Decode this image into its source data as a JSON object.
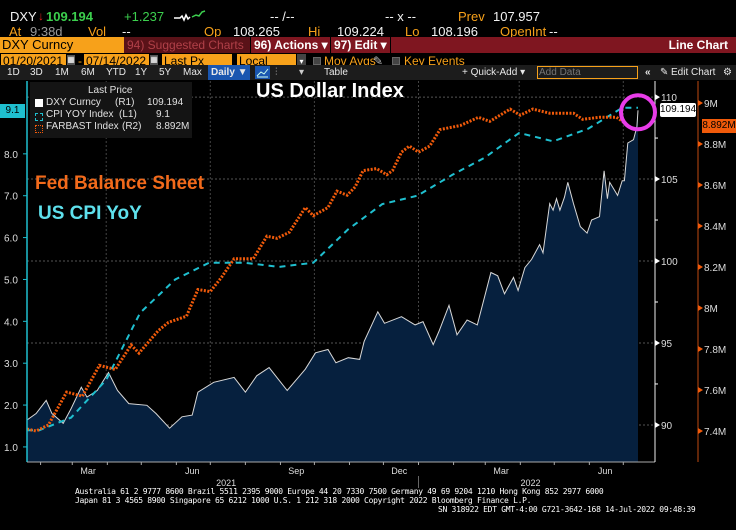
{
  "header": {
    "ticker": "DXY",
    "price": "109.194",
    "change": "+1.237",
    "bid_ask": "-- /--",
    "size": "-- x --",
    "prev_label": "Prev",
    "prev": "107.957",
    "at_label": "At",
    "time": "9:38d",
    "vol_label": "Vol",
    "vol": "--",
    "open_label": "Op",
    "open": "108.265",
    "high_label": "Hi",
    "high": "109.224",
    "low_label": "Lo",
    "low": "108.196",
    "openint_label": "OpenInt",
    "openint": "--"
  },
  "toolbar": {
    "security": "DXY Curncy",
    "suggested": "94) Suggested Charts",
    "actions": "96) Actions ▾",
    "edit": "97) Edit ▾",
    "chart_type": "Line Chart",
    "start_date": "01/20/2021",
    "date_sep": "-",
    "end_date": "07/14/2022",
    "field": "Last Px",
    "currency": "Local CCY",
    "mov_avgs": "Mov Avgs",
    "key_events": "Key Events",
    "ranges": [
      "1D",
      "3D",
      "1M",
      "6M",
      "YTD",
      "1Y",
      "5Y",
      "Max"
    ],
    "period": "Daily ▼",
    "table": "Table",
    "quick_add": "+ Quick-Add ▾",
    "add_data_placeholder": "Add Data",
    "collapse": "«",
    "edit_chart": "Edit Chart"
  },
  "legend": {
    "title": "Last Price",
    "items": [
      {
        "name": "DXY Curncy",
        "axis": "(R1)",
        "value": "109.194"
      },
      {
        "name": "CPI YOY Index",
        "axis": "(L1)",
        "value": "9.1"
      },
      {
        "name": "FARBAST Index",
        "axis": "(R2)",
        "value": "8.892M"
      }
    ]
  },
  "annotations": {
    "title": "US Dollar Index",
    "fed": "Fed Balance Sheet",
    "cpi": "US CPI YoY",
    "tag_left": "9.1",
    "tag_r1": "109.194",
    "tag_r2": "8.892M"
  },
  "colors": {
    "dxy": "#d8d8d8",
    "dxy_fill": "#06203e",
    "cpi": "#1fbfcf",
    "fed": "#f05a0a",
    "highlight": "#e83ce8",
    "accent": "#f7a11a"
  },
  "footer": {
    "line1": "Australia 61 2 9777 8600 Brazil 5511 2395 9000 Europe 44 20 7330 7500 Germany 49 69 9204 1210 Hong Kong 852 2977 6000",
    "line2": "Japan 81 3 4565 8900       Singapore 65 6212 1000       U.S. 1 212 318 2000       Copyright 2022 Bloomberg Finance L.P.",
    "line3": "SN 318922 EDT  GMT-4:00 G721-3642-168 14-Jul-2022 09:48:39"
  },
  "chart_data": {
    "type": "line",
    "title": "US Dollar Index",
    "x_range": [
      "2021-01-20",
      "2022-07-14"
    ],
    "x_ticks": [
      {
        "label": "Mar",
        "date": "2021-03-15"
      },
      {
        "label": "Jun",
        "date": "2021-06-15"
      },
      {
        "label": "Sep",
        "date": "2021-09-15"
      },
      {
        "label": "Dec",
        "date": "2021-12-15"
      },
      {
        "label": "Mar",
        "date": "2022-03-15"
      },
      {
        "label": "Jun",
        "date": "2022-06-15"
      }
    ],
    "year_labels": [
      {
        "label": "2021",
        "date": "2021-07-15"
      },
      {
        "label": "2022",
        "date": "2022-04-10"
      }
    ],
    "axes": {
      "L1": {
        "range": [
          0.64,
          9.74
        ],
        "ticks": [
          "1.0",
          "2.0",
          "3.0",
          "4.0",
          "5.0",
          "6.0",
          "7.0",
          "8.0"
        ]
      },
      "R1": {
        "range": [
          87.74,
          110.98
        ],
        "ticks": [
          "90",
          "95",
          "100",
          "105",
          "110"
        ]
      },
      "R2": {
        "range": [
          7.249,
          9.107
        ],
        "ticks": [
          "7.4M",
          "7.6M",
          "7.8M",
          "8M",
          "8.2M",
          "8.4M",
          "8.6M",
          "8.8M",
          "9M"
        ],
        "tick_values": [
          7.4,
          7.6,
          7.8,
          8.0,
          8.2,
          8.4,
          8.6,
          8.8,
          9.0
        ]
      }
    },
    "grid": true,
    "legend_position": "top-left",
    "series": [
      {
        "name": "DXY Curncy",
        "axis": "R1",
        "style": "area",
        "points": [
          [
            "2021-01-20",
            90.3
          ],
          [
            "2021-01-28",
            90.7
          ],
          [
            "2021-02-06",
            91.5
          ],
          [
            "2021-02-11",
            90.7
          ],
          [
            "2021-02-21",
            90.1
          ],
          [
            "2021-02-28",
            91.0
          ],
          [
            "2021-03-09",
            92.3
          ],
          [
            "2021-03-14",
            91.7
          ],
          [
            "2021-03-23",
            92.1
          ],
          [
            "2021-04-02",
            93.2
          ],
          [
            "2021-04-10",
            92.1
          ],
          [
            "2021-04-20",
            91.3
          ],
          [
            "2021-05-06",
            91.2
          ],
          [
            "2021-05-14",
            90.7
          ],
          [
            "2021-05-26",
            89.8
          ],
          [
            "2021-06-06",
            90.5
          ],
          [
            "2021-06-15",
            90.6
          ],
          [
            "2021-06-20",
            92.0
          ],
          [
            "2021-07-04",
            92.6
          ],
          [
            "2021-07-22",
            92.9
          ],
          [
            "2021-08-01",
            92.0
          ],
          [
            "2021-08-11",
            93.0
          ],
          [
            "2021-08-22",
            93.5
          ],
          [
            "2021-09-07",
            92.1
          ],
          [
            "2021-09-23",
            93.4
          ],
          [
            "2021-10-02",
            94.4
          ],
          [
            "2021-10-13",
            94.6
          ],
          [
            "2021-10-20",
            93.8
          ],
          [
            "2021-10-31",
            94.1
          ],
          [
            "2021-11-10",
            94.0
          ],
          [
            "2021-11-14",
            95.1
          ],
          [
            "2021-11-26",
            96.9
          ],
          [
            "2021-12-02",
            96.2
          ],
          [
            "2021-12-17",
            96.6
          ],
          [
            "2021-12-29",
            96.1
          ],
          [
            "2022-01-05",
            96.3
          ],
          [
            "2022-01-14",
            94.9
          ],
          [
            "2022-01-19",
            95.7
          ],
          [
            "2022-01-28",
            97.3
          ],
          [
            "2022-02-04",
            95.5
          ],
          [
            "2022-02-13",
            96.4
          ],
          [
            "2022-02-22",
            96.1
          ],
          [
            "2022-03-06",
            99.3
          ],
          [
            "2022-03-12",
            99.1
          ],
          [
            "2022-03-18",
            98.0
          ],
          [
            "2022-03-26",
            99.0
          ],
          [
            "2022-03-30",
            98.2
          ],
          [
            "2022-04-05",
            99.6
          ],
          [
            "2022-04-11",
            100.1
          ],
          [
            "2022-04-18",
            101.0
          ],
          [
            "2022-04-21",
            100.5
          ],
          [
            "2022-04-27",
            103.5
          ],
          [
            "2022-04-30",
            103.1
          ],
          [
            "2022-05-03",
            103.8
          ],
          [
            "2022-05-06",
            103.1
          ],
          [
            "2022-05-10",
            103.9
          ],
          [
            "2022-05-13",
            104.8
          ],
          [
            "2022-05-18",
            103.5
          ],
          [
            "2022-05-24",
            102.1
          ],
          [
            "2022-05-30",
            101.7
          ],
          [
            "2022-06-03",
            102.5
          ],
          [
            "2022-06-10",
            102.7
          ],
          [
            "2022-06-14",
            105.5
          ],
          [
            "2022-06-17",
            103.8
          ],
          [
            "2022-06-19",
            104.8
          ],
          [
            "2022-06-26",
            104.0
          ],
          [
            "2022-06-30",
            104.9
          ],
          [
            "2022-07-02",
            104.9
          ],
          [
            "2022-07-05",
            107.2
          ],
          [
            "2022-07-10",
            107.4
          ],
          [
            "2022-07-13",
            108.2
          ],
          [
            "2022-07-14",
            109.194
          ]
        ]
      },
      {
        "name": "CPI YOY Index",
        "axis": "L1",
        "style": "dashed",
        "points": [
          [
            "2021-01-20",
            1.4
          ],
          [
            "2021-01-31",
            1.4
          ],
          [
            "2021-02-28",
            1.7
          ],
          [
            "2021-03-31",
            2.6
          ],
          [
            "2021-04-30",
            4.2
          ],
          [
            "2021-05-31",
            5.0
          ],
          [
            "2021-06-30",
            5.4
          ],
          [
            "2021-07-31",
            5.4
          ],
          [
            "2021-08-31",
            5.3
          ],
          [
            "2021-09-30",
            5.4
          ],
          [
            "2021-10-31",
            6.2
          ],
          [
            "2021-11-30",
            6.8
          ],
          [
            "2021-12-31",
            7.0
          ],
          [
            "2022-01-31",
            7.5
          ],
          [
            "2022-02-28",
            7.9
          ],
          [
            "2022-03-31",
            8.5
          ],
          [
            "2022-04-30",
            8.3
          ],
          [
            "2022-05-31",
            8.6
          ],
          [
            "2022-06-30",
            9.1
          ],
          [
            "2022-07-14",
            9.1
          ]
        ]
      },
      {
        "name": "FARBAST Index",
        "axis": "R2",
        "style": "dotted",
        "points": [
          [
            "2021-01-20",
            7.41
          ],
          [
            "2021-01-28",
            7.4
          ],
          [
            "2021-02-08",
            7.43
          ],
          [
            "2021-02-24",
            7.59
          ],
          [
            "2021-03-10",
            7.57
          ],
          [
            "2021-03-25",
            7.72
          ],
          [
            "2021-04-08",
            7.7
          ],
          [
            "2021-04-22",
            7.82
          ],
          [
            "2021-04-29",
            7.78
          ],
          [
            "2021-05-16",
            7.89
          ],
          [
            "2021-05-25",
            7.93
          ],
          [
            "2021-06-10",
            7.96
          ],
          [
            "2021-06-20",
            8.09
          ],
          [
            "2021-07-01",
            8.08
          ],
          [
            "2021-07-11",
            8.15
          ],
          [
            "2021-07-22",
            8.24
          ],
          [
            "2021-08-08",
            8.24
          ],
          [
            "2021-08-20",
            8.35
          ],
          [
            "2021-08-29",
            8.34
          ],
          [
            "2021-09-09",
            8.37
          ],
          [
            "2021-09-23",
            8.49
          ],
          [
            "2021-09-30",
            8.45
          ],
          [
            "2021-10-13",
            8.49
          ],
          [
            "2021-10-21",
            8.57
          ],
          [
            "2021-10-30",
            8.55
          ],
          [
            "2021-11-06",
            8.59
          ],
          [
            "2021-11-13",
            8.67
          ],
          [
            "2021-11-25",
            8.68
          ],
          [
            "2021-12-04",
            8.65
          ],
          [
            "2021-12-09",
            8.67
          ],
          [
            "2021-12-17",
            8.76
          ],
          [
            "2021-12-24",
            8.79
          ],
          [
            "2022-01-01",
            8.76
          ],
          [
            "2022-01-11",
            8.79
          ],
          [
            "2022-01-20",
            8.87
          ],
          [
            "2022-02-07",
            8.89
          ],
          [
            "2022-02-23",
            8.93
          ],
          [
            "2022-03-05",
            8.91
          ],
          [
            "2022-03-23",
            8.97
          ],
          [
            "2022-04-01",
            8.94
          ],
          [
            "2022-04-12",
            8.97
          ],
          [
            "2022-04-27",
            8.95
          ],
          [
            "2022-05-18",
            8.95
          ],
          [
            "2022-05-26",
            8.92
          ],
          [
            "2022-06-10",
            8.93
          ],
          [
            "2022-06-25",
            8.93
          ],
          [
            "2022-07-05",
            8.892
          ]
        ]
      }
    ]
  }
}
